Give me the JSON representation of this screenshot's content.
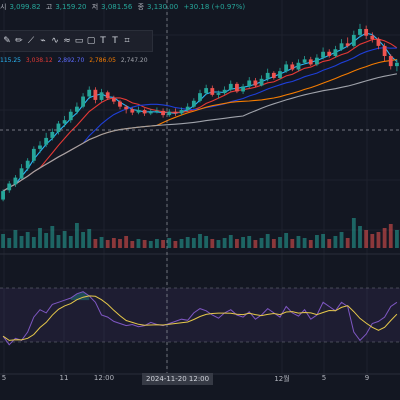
{
  "header": {
    "open_label": "시",
    "open_value": "3,099.82",
    "high_label": "고",
    "high_value": "3,159.20",
    "low_label": "저",
    "low_value": "3,081.56",
    "close_label": "종",
    "close_value": "3,130.00",
    "change": "+30.18 (+0.97%)"
  },
  "indicator_values": [
    "115.25",
    "3,038.12",
    "2,892.70",
    "2,786.05",
    "2,747.20"
  ],
  "toolbar": {
    "icons": [
      "brush-icon",
      "brush-bold-icon",
      "pen-icon",
      "path-icon",
      "wave-icon",
      "zigzag-icon",
      "rectangle-icon",
      "rectangle-alt-icon",
      "text-icon",
      "text-alt-icon",
      "frame-icon"
    ]
  },
  "x_axis": {
    "labels": [
      "5",
      "11",
      "12:00",
      "12월",
      "5",
      "9"
    ],
    "crosshair": "2024-11-20  12:00"
  },
  "colors": {
    "up": "#26a69a",
    "down": "#ef5350",
    "ma_short": "#29b6f6",
    "ma_mid": "#e53935",
    "ma_long": "#1e3fd8",
    "ma_orange": "#f57c00",
    "ma_grey": "#a0a3ab",
    "rsi": "#7e57c2",
    "signal": "#e6c84a",
    "band": "#7e57c2"
  },
  "chart_data": {
    "type": "candlestick",
    "price": [
      [
        0,
        230,
        220,
        232,
        218
      ],
      [
        1,
        219,
        211,
        222,
        208
      ],
      [
        2,
        212,
        204,
        215,
        201
      ],
      [
        3,
        205,
        193,
        206,
        188
      ],
      [
        4,
        193,
        184,
        196,
        181
      ],
      [
        5,
        184,
        170,
        187,
        167
      ],
      [
        6,
        170,
        166,
        175,
        161
      ],
      [
        7,
        165,
        157,
        168,
        151
      ],
      [
        8,
        157,
        150,
        160,
        146
      ],
      [
        9,
        150,
        140,
        153,
        137
      ],
      [
        10,
        140,
        136,
        144,
        131
      ],
      [
        11,
        136,
        126,
        139,
        123
      ],
      [
        12,
        126,
        120,
        129,
        115
      ],
      [
        13,
        120,
        108,
        122,
        104
      ],
      [
        14,
        108,
        100,
        111,
        96
      ],
      [
        15,
        100,
        112,
        116,
        97
      ],
      [
        16,
        112,
        103,
        114,
        99
      ],
      [
        17,
        103,
        110,
        112,
        101
      ],
      [
        18,
        110,
        114,
        117,
        107
      ],
      [
        19,
        114,
        120,
        123,
        112
      ],
      [
        20,
        120,
        123,
        128,
        118
      ],
      [
        21,
        123,
        127,
        130,
        121
      ],
      [
        22,
        127,
        124,
        129,
        120
      ],
      [
        23,
        124,
        128,
        131,
        122
      ],
      [
        24,
        128,
        126,
        130,
        123
      ],
      [
        25,
        126,
        125,
        128,
        121
      ],
      [
        26,
        125,
        130,
        133,
        122
      ],
      [
        27,
        130,
        126,
        132,
        123
      ],
      [
        28,
        126,
        128,
        131,
        122
      ],
      [
        29,
        128,
        124,
        130,
        121
      ],
      [
        30,
        124,
        120,
        126,
        116
      ],
      [
        31,
        120,
        113,
        122,
        110
      ],
      [
        32,
        113,
        104,
        115,
        100
      ],
      [
        33,
        104,
        98,
        106,
        94
      ],
      [
        34,
        98,
        106,
        108,
        95
      ],
      [
        35,
        106,
        104,
        110,
        101
      ],
      [
        36,
        104,
        100,
        106,
        96
      ],
      [
        37,
        100,
        93,
        102,
        89
      ],
      [
        38,
        93,
        102,
        104,
        91
      ],
      [
        39,
        102,
        96,
        105,
        93
      ],
      [
        40,
        96,
        89,
        98,
        85
      ],
      [
        41,
        89,
        95,
        97,
        86
      ],
      [
        42,
        95,
        87,
        96,
        83
      ],
      [
        43,
        87,
        80,
        90,
        75
      ],
      [
        44,
        80,
        86,
        88,
        78
      ],
      [
        45,
        86,
        78,
        88,
        74
      ],
      [
        46,
        78,
        70,
        80,
        66
      ],
      [
        47,
        70,
        76,
        78,
        67
      ],
      [
        48,
        76,
        68,
        78,
        64
      ],
      [
        49,
        68,
        64,
        70,
        60
      ],
      [
        50,
        64,
        70,
        72,
        61
      ],
      [
        51,
        70,
        62,
        72,
        58
      ],
      [
        52,
        62,
        55,
        64,
        50
      ],
      [
        53,
        55,
        60,
        62,
        52
      ],
      [
        54,
        60,
        52,
        62,
        48
      ],
      [
        55,
        52,
        45,
        54,
        40
      ],
      [
        56,
        45,
        48,
        50,
        38
      ],
      [
        57,
        48,
        35,
        50,
        30
      ],
      [
        58,
        35,
        28,
        38,
        22
      ],
      [
        59,
        28,
        36,
        40,
        24
      ],
      [
        60,
        36,
        40,
        44,
        32
      ],
      [
        61,
        40,
        48,
        52,
        38
      ],
      [
        62,
        48,
        60,
        66,
        45
      ],
      [
        63,
        60,
        72,
        76,
        58
      ],
      [
        64,
        72,
        68,
        78,
        64
      ]
    ],
    "volume": [
      [
        0,
        14
      ],
      [
        1,
        10
      ],
      [
        2,
        18
      ],
      [
        3,
        12
      ],
      [
        4,
        16
      ],
      [
        5,
        11
      ],
      [
        6,
        20
      ],
      [
        7,
        15
      ],
      [
        8,
        22
      ],
      [
        9,
        13
      ],
      [
        10,
        17
      ],
      [
        11,
        12
      ],
      [
        12,
        25
      ],
      [
        13,
        16
      ],
      [
        14,
        19
      ],
      [
        15,
        9
      ],
      [
        16,
        11
      ],
      [
        17,
        8
      ],
      [
        18,
        10
      ],
      [
        19,
        9
      ],
      [
        20,
        12
      ],
      [
        21,
        7
      ],
      [
        22,
        9
      ],
      [
        23,
        8
      ],
      [
        24,
        7
      ],
      [
        25,
        9
      ],
      [
        26,
        8
      ],
      [
        27,
        10
      ],
      [
        28,
        7
      ],
      [
        29,
        9
      ],
      [
        30,
        11
      ],
      [
        31,
        10
      ],
      [
        32,
        14
      ],
      [
        33,
        12
      ],
      [
        34,
        9
      ],
      [
        35,
        8
      ],
      [
        36,
        10
      ],
      [
        37,
        13
      ],
      [
        38,
        9
      ],
      [
        39,
        11
      ],
      [
        40,
        12
      ],
      [
        41,
        8
      ],
      [
        42,
        10
      ],
      [
        43,
        14
      ],
      [
        44,
        9
      ],
      [
        45,
        11
      ],
      [
        46,
        15
      ],
      [
        47,
        9
      ],
      [
        48,
        12
      ],
      [
        49,
        10
      ],
      [
        50,
        8
      ],
      [
        51,
        13
      ],
      [
        52,
        14
      ],
      [
        53,
        9
      ],
      [
        54,
        12
      ],
      [
        55,
        16
      ],
      [
        56,
        10
      ],
      [
        57,
        30
      ],
      [
        58,
        22
      ],
      [
        59,
        18
      ],
      [
        60,
        14
      ],
      [
        61,
        16
      ],
      [
        62,
        20
      ],
      [
        63,
        24
      ],
      [
        64,
        18
      ]
    ],
    "rsi": [
      [
        0,
        30
      ],
      [
        1,
        22
      ],
      [
        2,
        28
      ],
      [
        3,
        26
      ],
      [
        4,
        34
      ],
      [
        5,
        48
      ],
      [
        6,
        55
      ],
      [
        7,
        52
      ],
      [
        8,
        60
      ],
      [
        9,
        62
      ],
      [
        10,
        64
      ],
      [
        11,
        66
      ],
      [
        12,
        70
      ],
      [
        13,
        72
      ],
      [
        14,
        68
      ],
      [
        15,
        62
      ],
      [
        16,
        50
      ],
      [
        17,
        48
      ],
      [
        18,
        44
      ],
      [
        19,
        42
      ],
      [
        20,
        40
      ],
      [
        21,
        41
      ],
      [
        22,
        39
      ],
      [
        23,
        40
      ],
      [
        24,
        43
      ],
      [
        25,
        41
      ],
      [
        26,
        40
      ],
      [
        27,
        42
      ],
      [
        28,
        44
      ],
      [
        29,
        46
      ],
      [
        30,
        45
      ],
      [
        31,
        52
      ],
      [
        32,
        56
      ],
      [
        33,
        54
      ],
      [
        34,
        50
      ],
      [
        35,
        47
      ],
      [
        36,
        52
      ],
      [
        37,
        55
      ],
      [
        38,
        50
      ],
      [
        39,
        48
      ],
      [
        40,
        53
      ],
      [
        41,
        46
      ],
      [
        42,
        50
      ],
      [
        43,
        56
      ],
      [
        44,
        52
      ],
      [
        45,
        48
      ],
      [
        46,
        58
      ],
      [
        47,
        52
      ],
      [
        48,
        49
      ],
      [
        49,
        55
      ],
      [
        50,
        46
      ],
      [
        51,
        50
      ],
      [
        52,
        62
      ],
      [
        53,
        58
      ],
      [
        54,
        54
      ],
      [
        55,
        62
      ],
      [
        56,
        58
      ],
      [
        57,
        34
      ],
      [
        58,
        26
      ],
      [
        59,
        32
      ],
      [
        60,
        42
      ],
      [
        61,
        44
      ],
      [
        62,
        48
      ],
      [
        63,
        58
      ],
      [
        64,
        62
      ]
    ]
  }
}
